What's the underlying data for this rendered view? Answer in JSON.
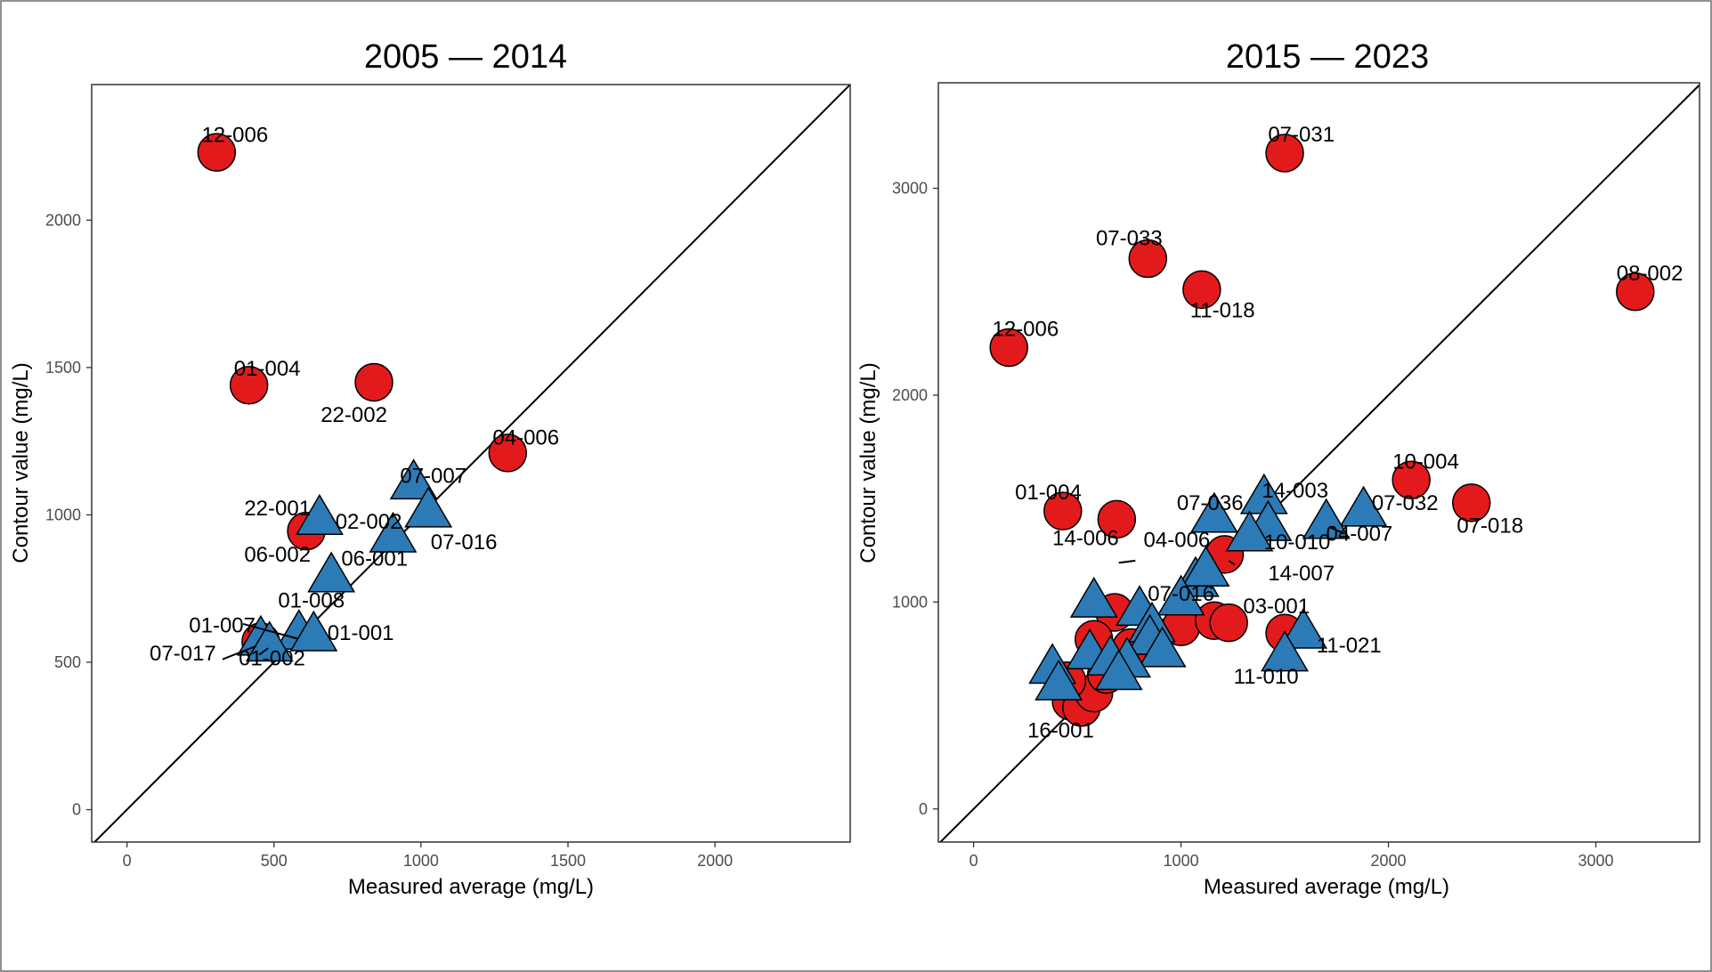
{
  "colors": {
    "above": "#E31A1C",
    "below": "#2C7BB6",
    "outline": "#000000",
    "background": "#FFFFFF"
  },
  "chart_data": [
    {
      "type": "scatter",
      "title": "2005 — 2014",
      "xlabel": "Measured average (mg/L)",
      "ylabel": "Contour value (mg/L)",
      "xlim": [
        -120,
        2460
      ],
      "ylim": [
        -110,
        2460
      ],
      "xticks": [
        0,
        500,
        1000,
        1500,
        2000
      ],
      "yticks": [
        0,
        500,
        1000,
        1500,
        2000
      ],
      "reference_line": "y = x",
      "grid": false,
      "series": [
        {
          "marker": "circle",
          "color": "#E31A1C",
          "points": [
            {
              "x": 305,
              "y": 2230
            },
            {
              "x": 415,
              "y": 1440
            },
            {
              "x": 840,
              "y": 1450
            },
            {
              "x": 1295,
              "y": 1210
            },
            {
              "x": 610,
              "y": 945
            },
            {
              "x": 455,
              "y": 570
            }
          ]
        },
        {
          "marker": "triangle",
          "color": "#2C7BB6",
          "points": [
            {
              "x": 655,
              "y": 985
            },
            {
              "x": 975,
              "y": 1105
            },
            {
              "x": 1025,
              "y": 1010
            },
            {
              "x": 905,
              "y": 925
            },
            {
              "x": 695,
              "y": 790
            },
            {
              "x": 585,
              "y": 595
            },
            {
              "x": 635,
              "y": 590
            },
            {
              "x": 455,
              "y": 575
            },
            {
              "x": 485,
              "y": 555
            }
          ]
        }
      ],
      "labels": [
        {
          "text": "12-006",
          "x": 367,
          "y": 2289
        },
        {
          "text": "01-004",
          "x": 477,
          "y": 1497
        },
        {
          "text": "22-002",
          "x": 772,
          "y": 1340
        },
        {
          "text": "04-006",
          "x": 1357,
          "y": 1262
        },
        {
          "text": "07-007",
          "x": 1042,
          "y": 1132
        },
        {
          "text": "22-001",
          "x": 512,
          "y": 1022
        },
        {
          "text": "02-002",
          "x": 822,
          "y": 977
        },
        {
          "text": "07-016",
          "x": 1146,
          "y": 907
        },
        {
          "text": "06-002",
          "x": 512,
          "y": 865
        },
        {
          "text": "06-001",
          "x": 842,
          "y": 852
        },
        {
          "text": "01-008",
          "x": 627,
          "y": 710
        },
        {
          "text": "01-007",
          "x": 324,
          "y": 625
        },
        {
          "text": "01-001",
          "x": 795,
          "y": 600
        },
        {
          "text": "07-017",
          "x": 190,
          "y": 530
        },
        {
          "text": "01-002",
          "x": 493,
          "y": 513
        }
      ],
      "leader_lines": [
        {
          "from": [
            395,
            630
          ],
          "to": [
            580,
            580
          ]
        },
        {
          "from": [
            325,
            510
          ],
          "to": [
            440,
            555
          ]
        },
        {
          "from": [
            450,
            525
          ],
          "to": [
            480,
            548
          ]
        }
      ]
    },
    {
      "type": "scatter",
      "title": "2015 — 2023",
      "xlabel": "Measured average (mg/L)",
      "ylabel": "Contour value (mg/L)",
      "xlim": [
        -170,
        3500
      ],
      "ylim": [
        -160,
        3510
      ],
      "xticks": [
        0,
        1000,
        2000,
        3000
      ],
      "yticks": [
        0,
        1000,
        2000,
        3000
      ],
      "reference_line": "y = x",
      "grid": false,
      "series": [
        {
          "marker": "circle",
          "color": "#E31A1C",
          "points": [
            {
              "x": 1500,
              "y": 3170
            },
            {
              "x": 840,
              "y": 2660
            },
            {
              "x": 1100,
              "y": 2510
            },
            {
              "x": 3190,
              "y": 2500
            },
            {
              "x": 170,
              "y": 2230
            },
            {
              "x": 2110,
              "y": 1590
            },
            {
              "x": 2400,
              "y": 1480
            },
            {
              "x": 430,
              "y": 1440
            },
            {
              "x": 690,
              "y": 1400
            },
            {
              "x": 1210,
              "y": 1230
            },
            {
              "x": 1000,
              "y": 880
            },
            {
              "x": 1160,
              "y": 910
            },
            {
              "x": 1230,
              "y": 900
            },
            {
              "x": 1500,
              "y": 850
            },
            {
              "x": 680,
              "y": 950
            },
            {
              "x": 580,
              "y": 820
            },
            {
              "x": 760,
              "y": 780
            },
            {
              "x": 470,
              "y": 520
            },
            {
              "x": 520,
              "y": 490
            },
            {
              "x": 580,
              "y": 560
            },
            {
              "x": 640,
              "y": 650
            },
            {
              "x": 450,
              "y": 620
            }
          ]
        },
        {
          "marker": "triangle",
          "color": "#2C7BB6",
          "points": [
            {
              "x": 1400,
              "y": 1500
            },
            {
              "x": 1880,
              "y": 1440
            },
            {
              "x": 1160,
              "y": 1410
            },
            {
              "x": 1700,
              "y": 1380
            },
            {
              "x": 1420,
              "y": 1370
            },
            {
              "x": 1330,
              "y": 1320
            },
            {
              "x": 1070,
              "y": 1100
            },
            {
              "x": 1120,
              "y": 1150
            },
            {
              "x": 1000,
              "y": 1010
            },
            {
              "x": 580,
              "y": 1000
            },
            {
              "x": 800,
              "y": 960
            },
            {
              "x": 860,
              "y": 880
            },
            {
              "x": 850,
              "y": 820
            },
            {
              "x": 910,
              "y": 760
            },
            {
              "x": 560,
              "y": 750
            },
            {
              "x": 660,
              "y": 720
            },
            {
              "x": 740,
              "y": 710
            },
            {
              "x": 700,
              "y": 650
            },
            {
              "x": 380,
              "y": 680
            },
            {
              "x": 410,
              "y": 600
            },
            {
              "x": 1590,
              "y": 850
            },
            {
              "x": 1500,
              "y": 740
            }
          ]
        }
      ],
      "labels": [
        {
          "text": "07-031",
          "x": 1580,
          "y": 3260
        },
        {
          "text": "07-033",
          "x": 750,
          "y": 2760
        },
        {
          "text": "11-018",
          "x": 1200,
          "y": 2410
        },
        {
          "text": "08-002",
          "x": 3260,
          "y": 2590
        },
        {
          "text": "12-006",
          "x": 250,
          "y": 2320
        },
        {
          "text": "10-004",
          "x": 2180,
          "y": 1680
        },
        {
          "text": "07-018",
          "x": 2490,
          "y": 1370
        },
        {
          "text": "01-004",
          "x": 360,
          "y": 1530
        },
        {
          "text": "14-003",
          "x": 1550,
          "y": 1540
        },
        {
          "text": "07-036",
          "x": 1140,
          "y": 1480
        },
        {
          "text": "07-032",
          "x": 2080,
          "y": 1480
        },
        {
          "text": "14-006",
          "x": 540,
          "y": 1310
        },
        {
          "text": "04-006",
          "x": 980,
          "y": 1300
        },
        {
          "text": "10-010",
          "x": 1560,
          "y": 1290
        },
        {
          "text": "04-007",
          "x": 1860,
          "y": 1330
        },
        {
          "text": "14-007",
          "x": 1580,
          "y": 1140
        },
        {
          "text": "07-016",
          "x": 1000,
          "y": 1040
        },
        {
          "text": "03-001",
          "x": 1460,
          "y": 980
        },
        {
          "text": "11-021",
          "x": 1810,
          "y": 790
        },
        {
          "text": "11-010",
          "x": 1410,
          "y": 640
        },
        {
          "text": "16-001",
          "x": 420,
          "y": 380
        }
      ],
      "leader_lines": [
        {
          "from": [
            1230,
            1200
          ],
          "to": [
            1260,
            1180
          ]
        },
        {
          "from": [
            1720,
            1360
          ],
          "to": [
            1790,
            1330
          ]
        },
        {
          "from": [
            700,
            1190
          ],
          "to": [
            780,
            1200
          ]
        }
      ]
    }
  ]
}
